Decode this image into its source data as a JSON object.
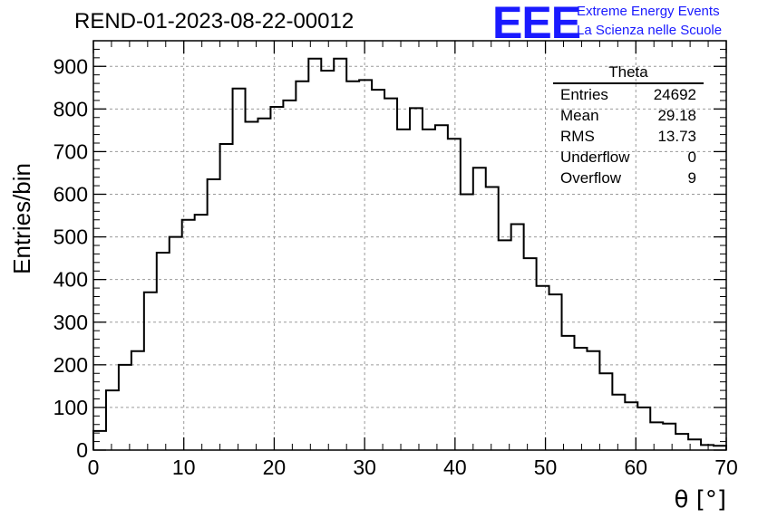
{
  "header": {
    "run_title": "REND-01-2023-08-22-00012",
    "logo": "EEE",
    "logo_line1": "Extreme Energy Events",
    "logo_line2": "La Scienza nelle Scuole"
  },
  "stats_box": {
    "title": "Theta",
    "rows": [
      {
        "label": "Entries",
        "value": "24692"
      },
      {
        "label": "Mean",
        "value": "29.18"
      },
      {
        "label": "RMS",
        "value": "13.73"
      },
      {
        "label": "Underflow",
        "value": "0"
      },
      {
        "label": "Overflow",
        "value": "9"
      }
    ]
  },
  "colors": {
    "histogram_line": "#000000",
    "grid": "#9a9a9a",
    "logo": "#1a1aff"
  },
  "chart_data": {
    "type": "bar",
    "style": "step-histogram",
    "xlabel": "θ [°]",
    "ylabel": "Entries/bin",
    "xlim": [
      0,
      70
    ],
    "ylim": [
      0,
      960
    ],
    "grid": true,
    "bin_width": 1.4,
    "x_ticks": [
      0,
      10,
      20,
      30,
      40,
      50,
      60,
      70
    ],
    "y_ticks": [
      0,
      100,
      200,
      300,
      400,
      500,
      600,
      700,
      800,
      900
    ],
    "bin_edges_start": 0,
    "values": [
      45,
      140,
      200,
      232,
      370,
      463,
      500,
      540,
      552,
      635,
      718,
      848,
      770,
      778,
      805,
      820,
      865,
      918,
      890,
      918,
      865,
      868,
      845,
      825,
      752,
      802,
      752,
      762,
      730,
      600,
      662,
      617,
      492,
      530,
      450,
      385,
      365,
      268,
      240,
      232,
      180,
      130,
      112,
      100,
      65,
      62,
      38,
      25,
      12,
      10
    ]
  }
}
